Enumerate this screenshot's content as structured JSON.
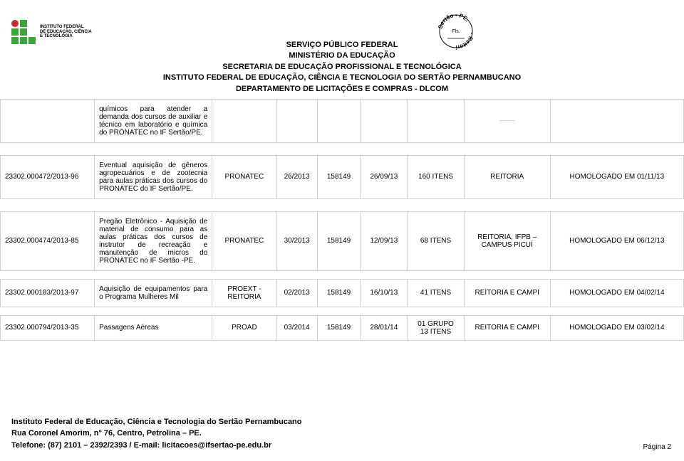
{
  "colors": {
    "logo_green": "#3da43a",
    "logo_red": "#c92a2a",
    "border": "#d0d0d0",
    "text": "#000000"
  },
  "logo": {
    "line1": "INSTITUTO FEDERAL",
    "line2": "DE EDUCAÇÃO, CIÊNCIA",
    "line3": "E TECNOLOGIA"
  },
  "stamp": {
    "top": "Sertão - PE.",
    "right": "- Reitoria",
    "fls": "Fls."
  },
  "header": {
    "l1": "SERVIÇO PÚBLICO FEDERAL",
    "l2": "MINISTÉRIO DA EDUCAÇÃO",
    "l3": "SECRETARIA DE EDUCAÇÃO PROFISSIONAL E TECNOLÓGICA",
    "l4": "INSTITUTO FEDERAL DE EDUCAÇÃO, CIÊNCIA E TECNOLOGIA DO SERTÃO PERNAMBUCANO",
    "l5": "DEPARTAMENTO DE LICITAÇÕES E COMPRAS - DLCOM"
  },
  "rows": [
    {
      "proc": "",
      "desc": "químicos para atender a demanda dos cursos de auxiliar e técnico em laboratório e química do PRONATEC no IF Sertão/PE.",
      "prog": "",
      "num": "",
      "uasg": "",
      "date": "",
      "items": "",
      "camp": "-------",
      "status": ""
    },
    {
      "proc": "23302.000472/2013-96",
      "desc": "Eventual aquisição de gêneros agropecuários e de zootecnia para aulas práticas dos cursos do PRONATEC do IF Sertão/PE.",
      "prog": "PRONATEC",
      "num": "26/2013",
      "uasg": "158149",
      "date": "26/09/13",
      "items": "160 ITENS",
      "camp": "REITORIA",
      "status": "HOMOLOGADO EM 01/11/13"
    },
    {
      "proc": "23302.000474/2013-85",
      "desc": "Pregão Eletrônico - Aquisição de material de consumo para as aulas práticas dos cursos de instrutor de recreação e manutenção de micros do PRONATEC no IF Sertão -PE.",
      "prog": "PRONATEC",
      "num": "30/2013",
      "uasg": "158149",
      "date": "12/09/13",
      "items": "68 ITENS",
      "camp": "REITORIA, IFPB – CAMPUS PICUÍ",
      "status": "HOMOLOGADO EM 06/12/13"
    },
    {
      "proc": "23302.000183/2013-97",
      "desc": "Aquisição de equipamentos para o Programa Mulheres Mil",
      "prog": "PROEXT - REITORIA",
      "num": "02/2013",
      "uasg": "158149",
      "date": "16/10/13",
      "items": "41 ITENS",
      "camp": "REITORIA E CAMPI",
      "status": "HOMOLOGADO EM 04/02/14"
    },
    {
      "proc": "23302.000794/2013-35",
      "desc": "Passagens Aéreas",
      "prog": "PROAD",
      "num": "03/2014",
      "uasg": "158149",
      "date": "28/01/14",
      "items": "01 GRUPO\n13 ITENS",
      "camp": "REITORIA E CAMPI",
      "status": "HOMOLOGADO EM 03/02/14"
    }
  ],
  "footer": {
    "l1": "Instituto Federal de Educação, Ciência e Tecnologia do Sertão Pernambucano",
    "l2": "Rua Coronel Amorim, n° 76, Centro, Petrolina – PE.",
    "l3": "Telefone: (87) 2101 – 2392/2393 / E-mail: licitacoes@ifsertao-pe.edu.br"
  },
  "page": "Página 2"
}
